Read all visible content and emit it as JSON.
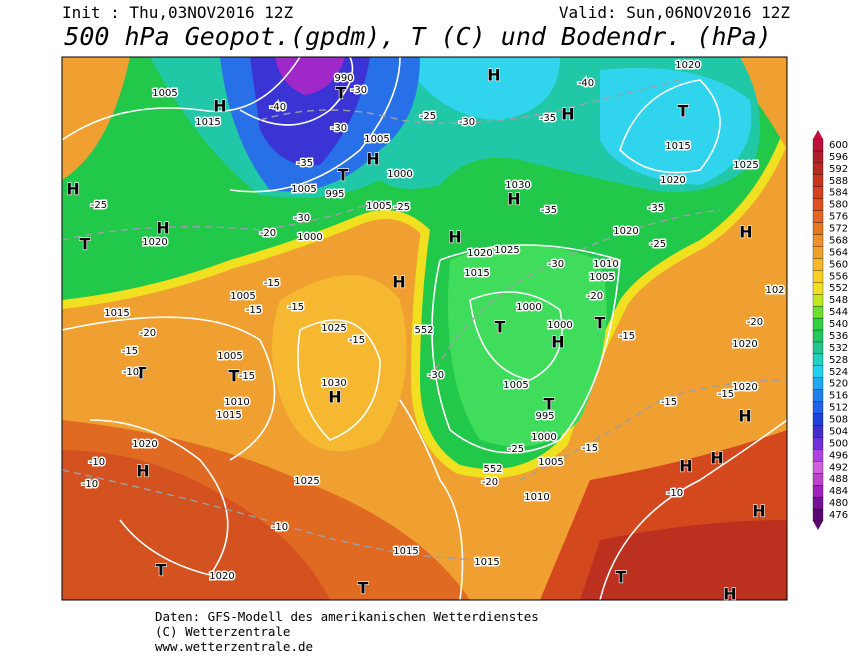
{
  "header": {
    "init": "Init : Thu,03NOV2016 12Z",
    "valid": "Valid: Sun,06NOV2016 12Z",
    "title": "500 hPa Geopot.(gpdm), T (C) und Bodendr. (hPa)"
  },
  "legend": {
    "levels": [
      476,
      480,
      484,
      488,
      492,
      496,
      500,
      504,
      508,
      512,
      516,
      520,
      524,
      528,
      532,
      536,
      540,
      544,
      548,
      552,
      556,
      560,
      564,
      568,
      572,
      576,
      580,
      584,
      588,
      592,
      596,
      600
    ],
    "colors": [
      "#5a0a6e",
      "#7a10a0",
      "#a020c0",
      "#c040d0",
      "#d060e0",
      "#b040e0",
      "#7030e0",
      "#4030d0",
      "#2040e0",
      "#2060f0",
      "#2080f0",
      "#20a8f0",
      "#20d0f0",
      "#20d0c0",
      "#20c890",
      "#20c860",
      "#30d040",
      "#70e030",
      "#c0e820",
      "#f0e020",
      "#f8d020",
      "#f8b828",
      "#f0a028",
      "#f09028",
      "#e87820",
      "#e86420",
      "#e05020",
      "#d84020",
      "#c83420",
      "#b82820",
      "#b01e28",
      "#c0103c"
    ]
  },
  "map_labels": [
    "H",
    "H",
    "H",
    "H",
    "H",
    "H",
    "H",
    "H",
    "H",
    "H",
    "H",
    "H",
    "H",
    "H",
    "H",
    "H",
    "H",
    "H",
    "T",
    "T",
    "T",
    "T",
    "T",
    "T",
    "T",
    "T",
    "T",
    "T",
    "T",
    "T",
    "1005",
    "1015",
    "1020",
    "1015",
    "1005",
    "1005",
    "1010",
    "1015",
    "1025",
    "1030",
    "1020",
    "1025",
    "1020",
    "1015",
    "1015",
    "1010",
    "1005",
    "1000",
    "995",
    "1005",
    "1000",
    "1000",
    "1015",
    "1020",
    "1025",
    "1030",
    "1010",
    "1005",
    "1020",
    "1015",
    "1020",
    "1025",
    "1020",
    "990",
    "1005",
    "1000",
    "995",
    "1005",
    "1000",
    "1005",
    "1020",
    "1020",
    "102",
    "-40",
    "-35",
    "-30",
    "-30",
    "-25",
    "-30",
    "-35",
    "-40",
    "-35",
    "-35",
    "-25",
    "-30",
    "-20",
    "-15",
    "-30",
    "-25",
    "-20",
    "-15",
    "-10",
    "-10",
    "-10",
    "-10",
    "-15",
    "-15",
    "-20",
    "-25",
    "-20",
    "-30",
    "-15",
    "-15",
    "-15",
    "-15",
    "-15",
    "-10",
    "-15",
    "-20",
    "-25",
    "552",
    "552"
  ],
  "footer": [
    "Daten: GFS-Modell des amerikanischen Wetterdienstes",
    "(C) Wetterzentrale",
    "www.wetterzentrale.de"
  ]
}
